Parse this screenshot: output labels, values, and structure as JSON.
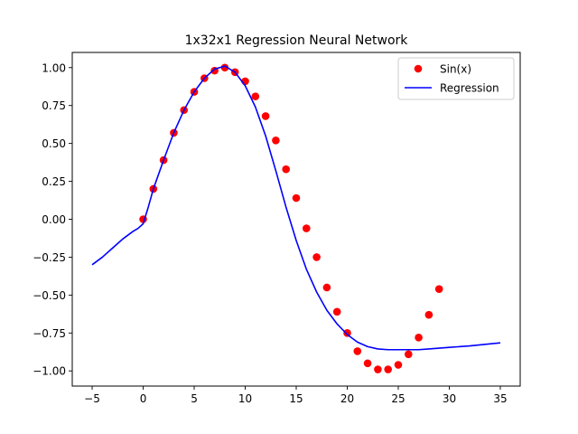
{
  "chart_data": {
    "type": "line",
    "title": "1x32x1 Regression Neural Network",
    "xlabel": "",
    "ylabel": "",
    "xlim": [
      -6.95,
      36.95
    ],
    "ylim": [
      -1.1,
      1.1
    ],
    "x_ticks": [
      -5,
      0,
      5,
      10,
      15,
      20,
      25,
      30,
      35
    ],
    "x_tick_labels": [
      "−5",
      "0",
      "5",
      "10",
      "15",
      "20",
      "25",
      "30",
      "35"
    ],
    "y_ticks": [
      1.0,
      0.75,
      0.5,
      0.25,
      0.0,
      -0.25,
      -0.5,
      -0.75,
      -1.0
    ],
    "y_tick_labels": [
      "1.00",
      "0.75",
      "0.50",
      "0.25",
      "0.00",
      "−0.25",
      "−0.50",
      "−0.75",
      "−1.00"
    ],
    "grid": false,
    "legend_position": "top-right",
    "series": [
      {
        "name": "Sin(x)",
        "kind": "scatter",
        "color": "#ff0000",
        "x": [
          0,
          1,
          2,
          3,
          4,
          5,
          6,
          7,
          8,
          9,
          10,
          11,
          12,
          13,
          14,
          15,
          16,
          17,
          18,
          19,
          20,
          21,
          22,
          23,
          24,
          25,
          26,
          27,
          28,
          29
        ],
        "y": [
          0.0,
          0.2,
          0.39,
          0.57,
          0.72,
          0.84,
          0.93,
          0.98,
          1.0,
          0.97,
          0.91,
          0.81,
          0.68,
          0.52,
          0.33,
          0.14,
          -0.06,
          -0.25,
          -0.45,
          -0.61,
          -0.75,
          -0.87,
          -0.95,
          -0.99,
          -0.99,
          -0.96,
          -0.89,
          -0.78,
          -0.63,
          -0.46
        ]
      },
      {
        "name": "Regression",
        "kind": "line",
        "color": "#0000ff",
        "x": [
          -5,
          -4,
          -3,
          -2,
          -1,
          -0.5,
          0,
          0.5,
          1,
          2,
          3,
          4,
          5,
          6,
          7,
          8,
          9,
          10,
          11,
          12,
          13,
          14,
          15,
          16,
          17,
          18,
          19,
          20,
          21,
          22,
          23,
          24,
          25,
          26,
          27,
          28,
          30,
          32,
          35
        ],
        "y": [
          -0.3,
          -0.25,
          -0.19,
          -0.13,
          -0.08,
          -0.06,
          -0.03,
          0.08,
          0.2,
          0.39,
          0.57,
          0.72,
          0.84,
          0.93,
          0.99,
          1.01,
          0.97,
          0.88,
          0.74,
          0.55,
          0.32,
          0.08,
          -0.14,
          -0.33,
          -0.48,
          -0.6,
          -0.69,
          -0.76,
          -0.81,
          -0.84,
          -0.855,
          -0.86,
          -0.86,
          -0.86,
          -0.86,
          -0.855,
          -0.845,
          -0.835,
          -0.815
        ]
      }
    ]
  }
}
